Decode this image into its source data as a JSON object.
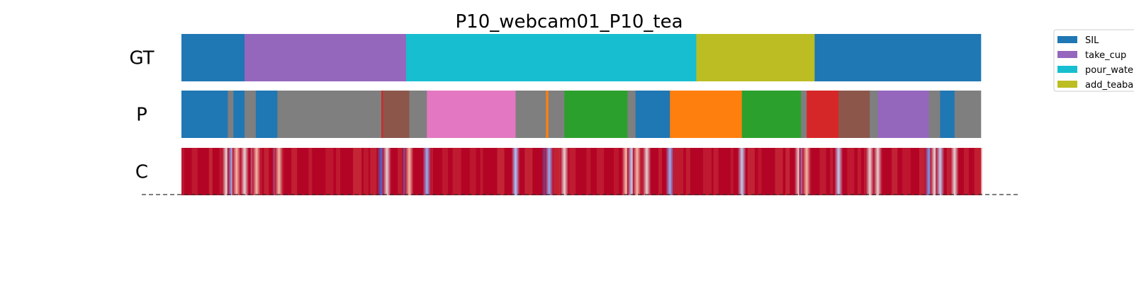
{
  "chart_data": {
    "type": "segmentation",
    "title": "P10_webcam01_P10_tea",
    "xlim": [
      0,
      1
    ],
    "legend": {
      "placement": "upper-right-outside",
      "entries": [
        {
          "label": "SIL",
          "color": "#1f77b4"
        },
        {
          "label": "take_cup",
          "color": "#9467bd"
        },
        {
          "label": "pour_wate",
          "color": "#17becf"
        },
        {
          "label": "add_teaba",
          "color": "#bcbd22"
        }
      ]
    },
    "rows": [
      {
        "label": "GT",
        "segments": [
          {
            "start": 0.0,
            "end": 0.079,
            "color": "#1f77b4"
          },
          {
            "start": 0.079,
            "end": 0.281,
            "color": "#9467bd"
          },
          {
            "start": 0.281,
            "end": 0.644,
            "color": "#17becf"
          },
          {
            "start": 0.644,
            "end": 0.792,
            "color": "#bcbd22"
          },
          {
            "start": 0.792,
            "end": 1.0,
            "color": "#1f77b4"
          }
        ]
      },
      {
        "label": "P",
        "segments": [
          {
            "start": 0.0,
            "end": 0.058,
            "color": "#1f77b4"
          },
          {
            "start": 0.058,
            "end": 0.065,
            "color": "#7f7f7f"
          },
          {
            "start": 0.065,
            "end": 0.079,
            "color": "#1f77b4"
          },
          {
            "start": 0.079,
            "end": 0.093,
            "color": "#7f7f7f"
          },
          {
            "start": 0.093,
            "end": 0.12,
            "color": "#1f77b4"
          },
          {
            "start": 0.12,
            "end": 0.25,
            "color": "#7f7f7f"
          },
          {
            "start": 0.25,
            "end": 0.252,
            "color": "#d62728"
          },
          {
            "start": 0.252,
            "end": 0.285,
            "color": "#8c564b"
          },
          {
            "start": 0.285,
            "end": 0.307,
            "color": "#7f7f7f"
          },
          {
            "start": 0.307,
            "end": 0.418,
            "color": "#e377c2"
          },
          {
            "start": 0.418,
            "end": 0.456,
            "color": "#7f7f7f"
          },
          {
            "start": 0.456,
            "end": 0.459,
            "color": "#ff7f0e"
          },
          {
            "start": 0.459,
            "end": 0.479,
            "color": "#7f7f7f"
          },
          {
            "start": 0.479,
            "end": 0.558,
            "color": "#2ca02c"
          },
          {
            "start": 0.558,
            "end": 0.568,
            "color": "#7f7f7f"
          },
          {
            "start": 0.568,
            "end": 0.611,
            "color": "#1f77b4"
          },
          {
            "start": 0.611,
            "end": 0.701,
            "color": "#ff7f0e"
          },
          {
            "start": 0.701,
            "end": 0.775,
            "color": "#2ca02c"
          },
          {
            "start": 0.775,
            "end": 0.782,
            "color": "#7f7f7f"
          },
          {
            "start": 0.782,
            "end": 0.822,
            "color": "#d62728"
          },
          {
            "start": 0.822,
            "end": 0.861,
            "color": "#8c564b"
          },
          {
            "start": 0.861,
            "end": 0.871,
            "color": "#7f7f7f"
          },
          {
            "start": 0.871,
            "end": 0.935,
            "color": "#9467bd"
          },
          {
            "start": 0.935,
            "end": 0.949,
            "color": "#7f7f7f"
          },
          {
            "start": 0.949,
            "end": 0.967,
            "color": "#1f77b4"
          },
          {
            "start": 0.967,
            "end": 1.0,
            "color": "#7f7f7f"
          }
        ]
      },
      {
        "label": "C",
        "base_color": "#b40426",
        "dips": [
          {
            "pos": 0.056,
            "depth": 0.6
          },
          {
            "pos": 0.063,
            "depth": 0.8
          },
          {
            "pos": 0.069,
            "depth": 0.5
          },
          {
            "pos": 0.079,
            "depth": 0.6
          },
          {
            "pos": 0.091,
            "depth": 0.7
          },
          {
            "pos": 0.094,
            "depth": 0.5
          },
          {
            "pos": 0.119,
            "depth": 0.8
          },
          {
            "pos": 0.122,
            "depth": 0.5
          },
          {
            "pos": 0.25,
            "depth": 0.95
          },
          {
            "pos": 0.257,
            "depth": 0.6
          },
          {
            "pos": 0.281,
            "depth": 0.9
          },
          {
            "pos": 0.285,
            "depth": 0.5
          },
          {
            "pos": 0.307,
            "depth": 0.8
          },
          {
            "pos": 0.418,
            "depth": 0.75
          },
          {
            "pos": 0.456,
            "depth": 0.95
          },
          {
            "pos": 0.46,
            "depth": 0.8
          },
          {
            "pos": 0.479,
            "depth": 0.6
          },
          {
            "pos": 0.556,
            "depth": 0.5
          },
          {
            "pos": 0.563,
            "depth": 0.7
          },
          {
            "pos": 0.57,
            "depth": 0.5
          },
          {
            "pos": 0.582,
            "depth": 0.6
          },
          {
            "pos": 0.611,
            "depth": 0.8
          },
          {
            "pos": 0.701,
            "depth": 0.7
          },
          {
            "pos": 0.772,
            "depth": 0.6
          },
          {
            "pos": 0.778,
            "depth": 0.8
          },
          {
            "pos": 0.782,
            "depth": 0.5
          },
          {
            "pos": 0.822,
            "depth": 0.7
          },
          {
            "pos": 0.861,
            "depth": 0.6
          },
          {
            "pos": 0.871,
            "depth": 0.6
          },
          {
            "pos": 0.935,
            "depth": 0.85
          },
          {
            "pos": 0.942,
            "depth": 0.6
          },
          {
            "pos": 0.949,
            "depth": 0.7
          },
          {
            "pos": 0.967,
            "depth": 0.6
          }
        ]
      }
    ]
  }
}
